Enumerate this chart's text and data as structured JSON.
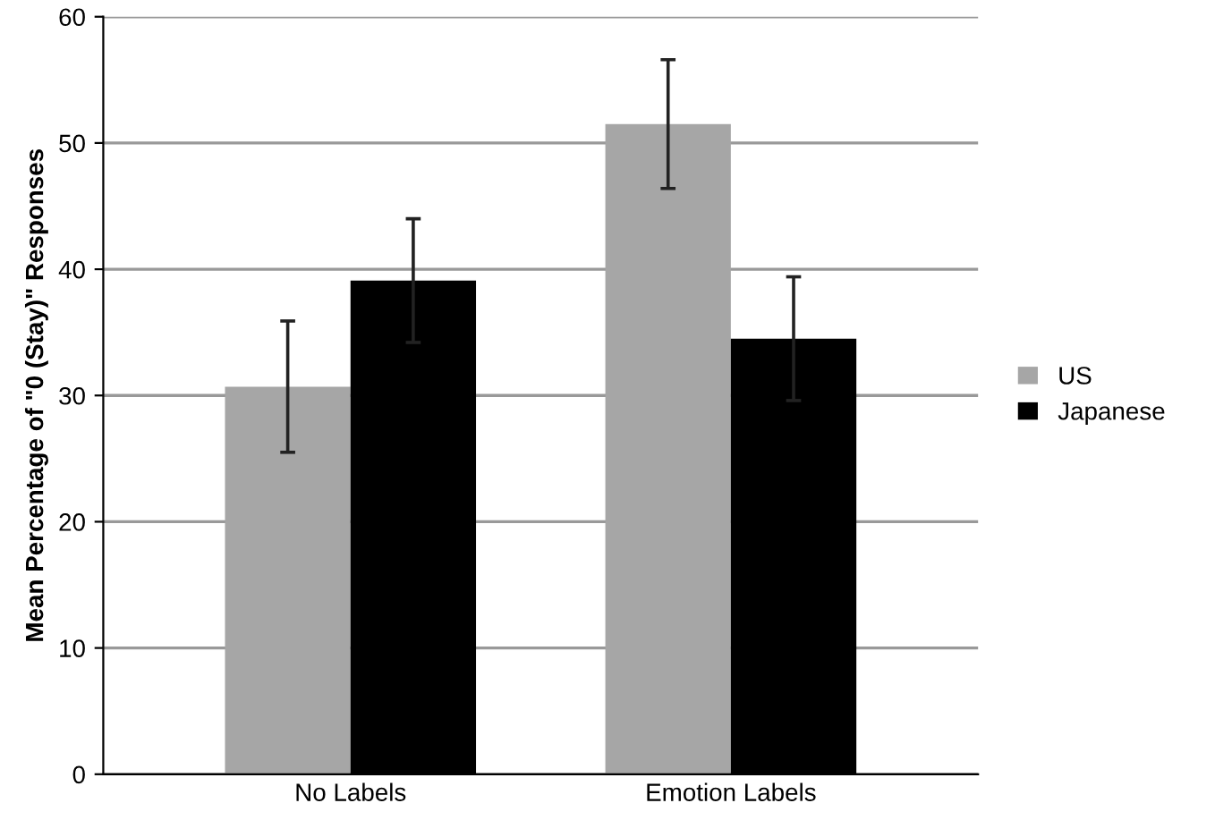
{
  "chart_data": {
    "type": "bar",
    "ylabel": "Mean Percentage of \"0 (Stay)\" Responses",
    "categories": [
      "No Labels",
      "Emotion Labels"
    ],
    "series": [
      {
        "name": "US",
        "color": "#a6a6a6",
        "values": [
          30.7,
          51.5
        ],
        "errors": [
          5.2,
          5.1
        ]
      },
      {
        "name": "Japanese",
        "color": "#000000",
        "values": [
          39.1,
          34.5
        ],
        "errors": [
          4.9,
          4.9
        ]
      }
    ],
    "ylim": [
      0,
      60
    ],
    "yticks": [
      0,
      10,
      20,
      30,
      40,
      50,
      60
    ],
    "grid": "y",
    "legend": "right"
  }
}
